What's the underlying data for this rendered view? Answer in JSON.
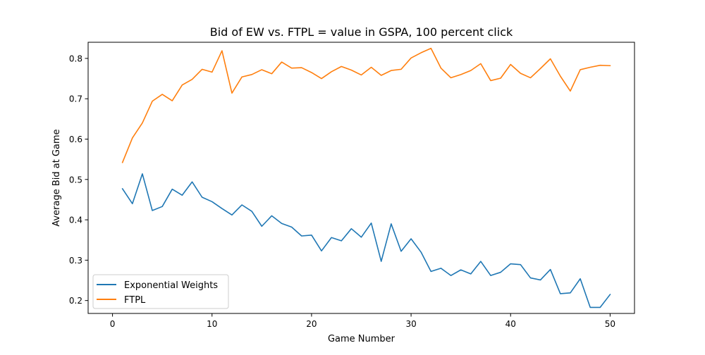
{
  "chart_data": {
    "type": "line",
    "title": "Bid of EW vs. FTPL = value in GSPA, 100 percent click",
    "xlabel": "Game Number",
    "ylabel": "Average Bid at Game",
    "xlim": [
      -2.45,
      52.45
    ],
    "ylim": [
      0.168,
      0.84
    ],
    "xticks": [
      0,
      10,
      20,
      30,
      40,
      50
    ],
    "yticks": [
      0.2,
      0.3,
      0.4,
      0.5,
      0.6,
      0.7,
      0.8
    ],
    "xtick_labels": [
      "0",
      "10",
      "20",
      "30",
      "40",
      "50"
    ],
    "ytick_labels": [
      "0.2",
      "0.3",
      "0.4",
      "0.5",
      "0.6",
      "0.7",
      "0.8"
    ],
    "grid": false,
    "legend_position": "lower-left",
    "x": [
      1,
      2,
      3,
      4,
      5,
      6,
      7,
      8,
      9,
      10,
      11,
      12,
      13,
      14,
      15,
      16,
      17,
      18,
      19,
      20,
      21,
      22,
      23,
      24,
      25,
      26,
      27,
      28,
      29,
      30,
      31,
      32,
      33,
      34,
      35,
      36,
      37,
      38,
      39,
      40,
      41,
      42,
      43,
      44,
      45,
      46,
      47,
      48,
      49,
      50
    ],
    "series": [
      {
        "name": "Exponential Weights",
        "color": "#1f77b4",
        "values": [
          0.477,
          0.44,
          0.514,
          0.423,
          0.433,
          0.476,
          0.461,
          0.494,
          0.456,
          0.445,
          0.428,
          0.412,
          0.437,
          0.421,
          0.384,
          0.41,
          0.391,
          0.382,
          0.36,
          0.362,
          0.323,
          0.356,
          0.348,
          0.378,
          0.357,
          0.392,
          0.297,
          0.39,
          0.322,
          0.353,
          0.32,
          0.272,
          0.28,
          0.262,
          0.276,
          0.266,
          0.297,
          0.262,
          0.27,
          0.291,
          0.289,
          0.256,
          0.251,
          0.277,
          0.217,
          0.219,
          0.254,
          0.183,
          0.183,
          0.215
        ]
      },
      {
        "name": "FTPL",
        "color": "#ff7f0e",
        "values": [
          0.542,
          0.603,
          0.64,
          0.694,
          0.711,
          0.695,
          0.734,
          0.748,
          0.773,
          0.766,
          0.819,
          0.714,
          0.754,
          0.76,
          0.772,
          0.762,
          0.791,
          0.776,
          0.777,
          0.765,
          0.75,
          0.767,
          0.78,
          0.771,
          0.759,
          0.778,
          0.758,
          0.77,
          0.773,
          0.801,
          0.814,
          0.825,
          0.776,
          0.752,
          0.76,
          0.77,
          0.787,
          0.745,
          0.751,
          0.785,
          0.763,
          0.752,
          0.775,
          0.799,
          0.756,
          0.719,
          0.772,
          0.778,
          0.783,
          0.782
        ]
      }
    ]
  }
}
